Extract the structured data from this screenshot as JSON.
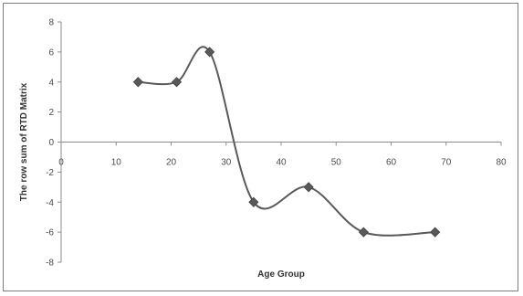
{
  "chart_data": {
    "type": "line",
    "title": "",
    "xlabel": "Age Group",
    "ylabel": "The row sum of RTD Matrix",
    "xlim": [
      0,
      80
    ],
    "ylim": [
      -8,
      8
    ],
    "xticks": [
      0,
      10,
      20,
      30,
      40,
      50,
      60,
      70,
      80
    ],
    "yticks": [
      8,
      6,
      4,
      2,
      0,
      -2,
      -4,
      -6,
      -8
    ],
    "grid": false,
    "legend": "none",
    "smooth": true,
    "series": [
      {
        "x": [
          14,
          21,
          27,
          35,
          45,
          55,
          68
        ],
        "y": [
          4,
          4,
          6,
          -4,
          -3,
          -6,
          -6
        ],
        "marker": "diamond",
        "color": "#595959"
      }
    ]
  }
}
